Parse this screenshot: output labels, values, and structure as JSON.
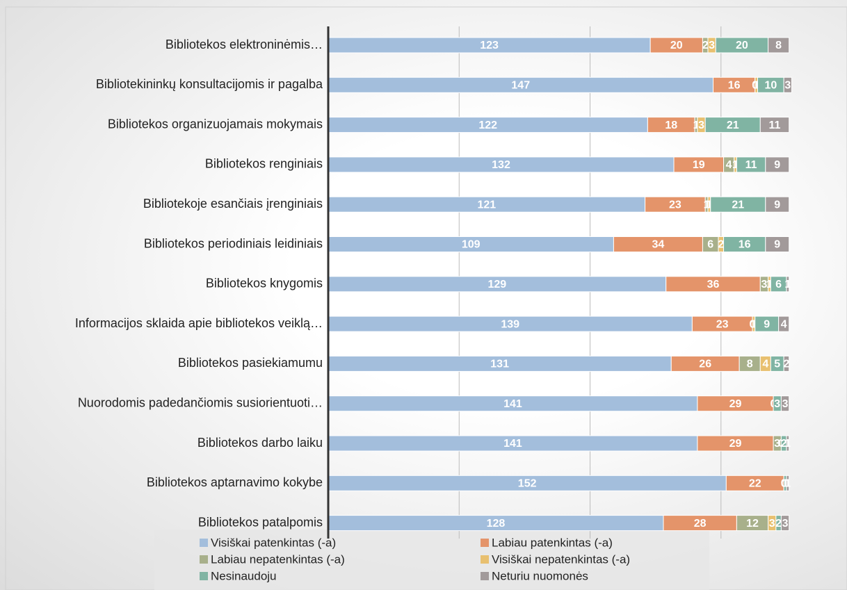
{
  "chart_data": {
    "type": "stacked-barh",
    "categories": [
      "Bibliotekos elektroninėmis…",
      "Bibliotekininkų konsultacijomis ir pagalba",
      "Bibliotekos organizuojamais mokymais",
      "Bibliotekos renginiais",
      "Bibliotekoje esančiais įrenginiais",
      "Bibliotekos periodiniais leidiniais",
      "Bibliotekos knygomis",
      "Informacijos sklaida apie bibliotekos veiklą…",
      "Bibliotekos pasiekiamumu",
      "Nuorodomis padedančiomis susiorientuoti…",
      "Bibliotekos darbo laiku",
      "Bibliotekos aptarnavimo kokybe",
      "Bibliotekos patalpomis"
    ],
    "series": [
      {
        "name": "Visiškai patenkintas (-a)",
        "color": "#a3bedc",
        "values": [
          123,
          147,
          122,
          132,
          121,
          109,
          129,
          139,
          131,
          141,
          141,
          152,
          128
        ]
      },
      {
        "name": "Labiau patenkintas (-a)",
        "color": "#e4946a",
        "values": [
          20,
          16,
          18,
          19,
          23,
          34,
          36,
          23,
          26,
          29,
          29,
          22,
          28
        ]
      },
      {
        "name": "Labiau nepatenkintas (-a)",
        "color": "#a8b08b",
        "values": [
          2,
          0,
          1,
          4,
          1,
          6,
          3,
          0,
          8,
          0,
          3,
          0,
          12
        ]
      },
      {
        "name": "Visiškai nepatenkintas (-a)",
        "color": "#e8c070",
        "values": [
          3,
          1,
          3,
          1,
          1,
          2,
          1,
          1,
          4,
          0,
          0,
          0,
          3
        ]
      },
      {
        "name": "Nesinaudoju",
        "color": "#80b4a3",
        "values": [
          20,
          10,
          21,
          11,
          21,
          16,
          6,
          9,
          5,
          3,
          2,
          1,
          2
        ]
      },
      {
        "name": "Neturiu nuomonės",
        "color": "#a29a9a",
        "values": [
          8,
          3,
          11,
          9,
          9,
          9,
          1,
          4,
          2,
          3,
          1,
          1,
          3
        ]
      }
    ],
    "xlim": [
      0,
      196
    ],
    "xticks": [
      0,
      50,
      100,
      150
    ],
    "grid": true
  }
}
